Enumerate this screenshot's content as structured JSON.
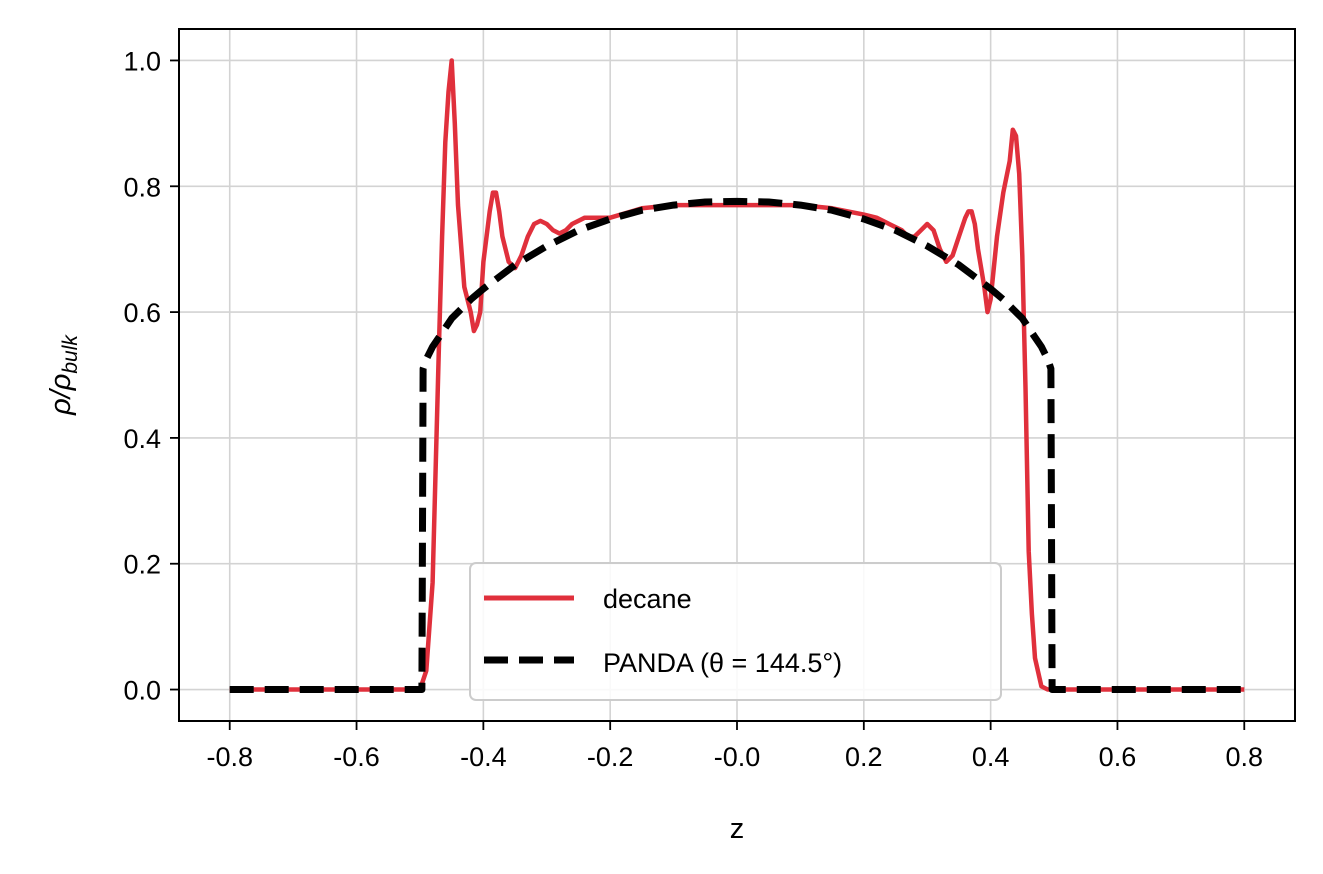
{
  "chart_data": {
    "type": "line",
    "title": "",
    "xlabel": "z",
    "ylabel": "ρ/ρ",
    "ylabel_subscript": "bulk",
    "xlim": [
      -0.88,
      0.88
    ],
    "ylim": [
      -0.05,
      1.05
    ],
    "xticks": [
      -0.8,
      -0.6,
      -0.4,
      -0.2,
      0.0,
      0.2,
      0.4,
      0.6,
      0.8
    ],
    "xtick_labels": [
      "-0.8",
      "-0.6",
      "-0.4",
      "-0.2",
      "-0.0",
      "0.2",
      "0.4",
      "0.6",
      "0.8"
    ],
    "yticks": [
      0.0,
      0.2,
      0.4,
      0.6,
      0.8,
      1.0
    ],
    "ytick_labels": [
      "0.0",
      "0.2",
      "0.4",
      "0.6",
      "0.8",
      "1.0"
    ],
    "grid": true,
    "legend_position": "lower center",
    "colors": {
      "decane": "#e0303c",
      "panda": "#000000"
    },
    "series": [
      {
        "name": "decane",
        "style": "solid",
        "x": [
          -0.8,
          -0.5,
          -0.49,
          -0.48,
          -0.47,
          -0.465,
          -0.46,
          -0.455,
          -0.45,
          -0.445,
          -0.44,
          -0.43,
          -0.42,
          -0.415,
          -0.41,
          -0.405,
          -0.4,
          -0.39,
          -0.385,
          -0.38,
          -0.375,
          -0.37,
          -0.36,
          -0.35,
          -0.34,
          -0.33,
          -0.32,
          -0.31,
          -0.3,
          -0.29,
          -0.28,
          -0.27,
          -0.26,
          -0.24,
          -0.22,
          -0.2,
          -0.15,
          -0.1,
          -0.05,
          0.0,
          0.05,
          0.1,
          0.15,
          0.2,
          0.22,
          0.24,
          0.26,
          0.27,
          0.28,
          0.29,
          0.3,
          0.31,
          0.32,
          0.33,
          0.34,
          0.35,
          0.36,
          0.365,
          0.37,
          0.375,
          0.38,
          0.39,
          0.395,
          0.4,
          0.405,
          0.41,
          0.42,
          0.43,
          0.435,
          0.44,
          0.445,
          0.45,
          0.455,
          0.46,
          0.465,
          0.47,
          0.48,
          0.49,
          0.5,
          0.8
        ],
        "y": [
          0.0,
          0.0,
          0.03,
          0.17,
          0.55,
          0.72,
          0.87,
          0.95,
          1.0,
          0.9,
          0.77,
          0.64,
          0.6,
          0.57,
          0.58,
          0.6,
          0.68,
          0.76,
          0.79,
          0.79,
          0.76,
          0.72,
          0.68,
          0.67,
          0.69,
          0.72,
          0.74,
          0.745,
          0.74,
          0.73,
          0.725,
          0.73,
          0.74,
          0.75,
          0.75,
          0.75,
          0.765,
          0.77,
          0.77,
          0.77,
          0.77,
          0.77,
          0.765,
          0.755,
          0.75,
          0.74,
          0.73,
          0.72,
          0.72,
          0.73,
          0.74,
          0.73,
          0.7,
          0.68,
          0.69,
          0.72,
          0.75,
          0.76,
          0.76,
          0.74,
          0.7,
          0.64,
          0.6,
          0.62,
          0.67,
          0.72,
          0.79,
          0.84,
          0.89,
          0.88,
          0.82,
          0.69,
          0.48,
          0.22,
          0.12,
          0.05,
          0.005,
          0.0,
          0.0,
          0.0
        ]
      },
      {
        "name": "PANDA (θ = 144.5°)",
        "style": "dashed",
        "x": [
          -0.8,
          -0.505,
          -0.497,
          -0.495,
          -0.49,
          -0.48,
          -0.47,
          -0.45,
          -0.42,
          -0.4,
          -0.35,
          -0.3,
          -0.25,
          -0.2,
          -0.15,
          -0.1,
          -0.05,
          0.0,
          0.05,
          0.1,
          0.15,
          0.2,
          0.25,
          0.3,
          0.35,
          0.4,
          0.42,
          0.45,
          0.47,
          0.48,
          0.49,
          0.495,
          0.497,
          0.505,
          0.8
        ],
        "y": [
          0.0,
          0.0,
          0.0,
          0.51,
          0.525,
          0.545,
          0.56,
          0.59,
          0.62,
          0.637,
          0.675,
          0.705,
          0.73,
          0.748,
          0.762,
          0.77,
          0.775,
          0.776,
          0.775,
          0.77,
          0.762,
          0.748,
          0.73,
          0.705,
          0.675,
          0.637,
          0.62,
          0.59,
          0.56,
          0.545,
          0.525,
          0.51,
          0.0,
          0.0,
          0.0
        ]
      }
    ]
  }
}
